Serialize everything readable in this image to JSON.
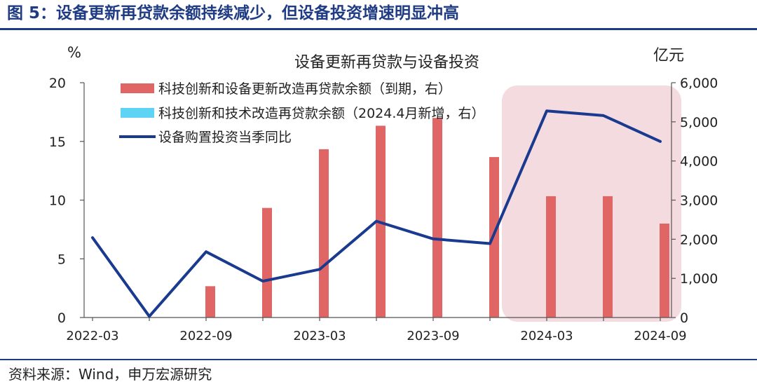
{
  "figure_title": "图 5：设备更新再贷款余额持续减少，但设备投资增速明显冲高",
  "source": "资料来源：Wind，申万宏源研究",
  "colors": {
    "bar": "#e06666",
    "legend_cyan": "#5fd3f3",
    "line": "#1a3a8f",
    "highlight": "#f4dbdf",
    "title_blue": "#1f3b84"
  },
  "chart_data": {
    "type": "bar+line",
    "title": "设备更新再贷款与设备投资",
    "y_left_unit": "%",
    "y_right_unit": "亿元",
    "y_left_ticks": [
      "0",
      "5",
      "10",
      "15",
      "20"
    ],
    "y_right_ticks": [
      "0",
      "1,000",
      "2,000",
      "3,000",
      "4,000",
      "5,000",
      "6,000"
    ],
    "ylim_left": [
      0,
      20
    ],
    "ylim_right": [
      0,
      6000
    ],
    "x_ticks": [
      "2022-03",
      "2022-09",
      "2023-03",
      "2023-09",
      "2024-03",
      "2024-09"
    ],
    "categories": [
      "2022-03",
      "2022-06",
      "2022-09",
      "2022-12",
      "2023-03",
      "2023-06",
      "2023-09",
      "2023-12",
      "2024-03",
      "2024-06",
      "2024-09"
    ],
    "series": [
      {
        "name": "科技创新和设备更新改造再贷款余额（到期，右）",
        "type": "bar",
        "axis": "right",
        "values": [
          null,
          null,
          800,
          2800,
          4300,
          4900,
          5100,
          4100,
          3100,
          3100,
          2400
        ]
      },
      {
        "name": "科技创新和技术改造再贷款余额（2024.4月新增，右）",
        "type": "bar",
        "axis": "right",
        "values": [
          null,
          null,
          null,
          null,
          null,
          null,
          null,
          null,
          null,
          null,
          null
        ]
      },
      {
        "name": "设备购置投资当季同比",
        "type": "line",
        "axis": "left",
        "values": [
          6.8,
          0.1,
          5.6,
          3.1,
          4.1,
          8.2,
          6.7,
          6.3,
          17.6,
          17.2,
          15.0
        ]
      }
    ],
    "highlight_range": [
      "2024-03",
      "2024-09"
    ],
    "legend_placement": "top-left"
  }
}
